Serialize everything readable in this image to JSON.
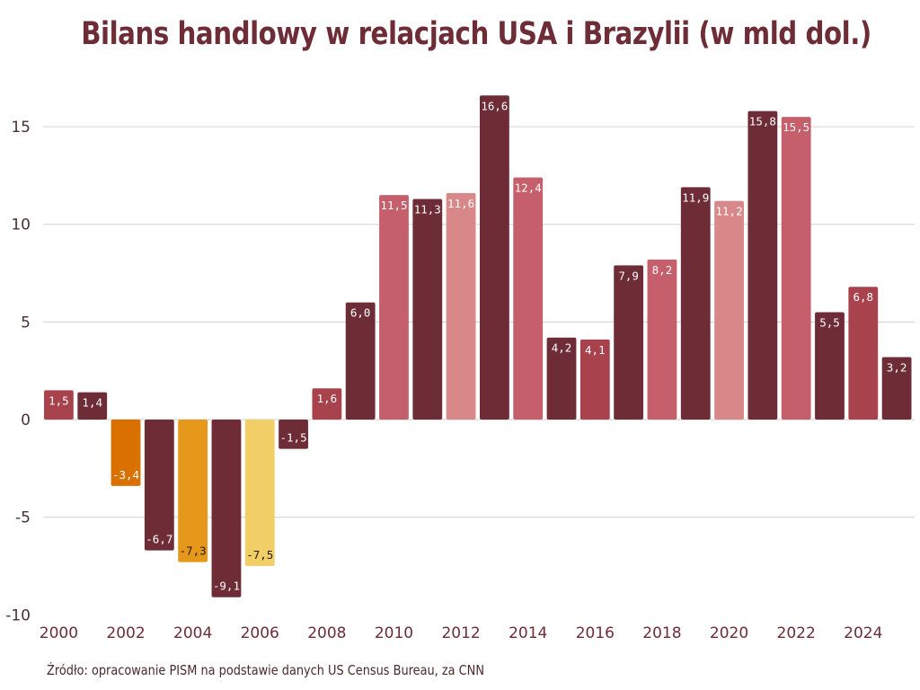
{
  "chart_data": {
    "type": "bar",
    "title": "Bilans handlowy w relacjach USA i Brazylii (w mld dol.)",
    "xlabel": "",
    "ylabel": "",
    "ylim": [
      -10,
      17
    ],
    "yticks": [
      15,
      10,
      5,
      0,
      -5,
      -10
    ],
    "ytick_labels": [
      "15",
      "10",
      "5",
      "0",
      "-5",
      "-10"
    ],
    "grid": true,
    "legend": "none",
    "categories": [
      "2000",
      "2001",
      "2002",
      "2003",
      "2004",
      "2005",
      "2006",
      "2007",
      "2008",
      "2009",
      "2010",
      "2011",
      "2012",
      "2013",
      "2014",
      "2015",
      "2016",
      "2017",
      "2018",
      "2019",
      "2020",
      "2021",
      "2022",
      "2023",
      "2024",
      "2025"
    ],
    "xtick_labels": [
      "2000",
      "2002",
      "2004",
      "2006",
      "2008",
      "2010",
      "2012",
      "2014",
      "2016",
      "2018",
      "2020",
      "2022",
      "2024"
    ],
    "values": [
      1.5,
      1.4,
      -3.4,
      -6.7,
      -7.3,
      -9.1,
      -7.5,
      -1.5,
      1.6,
      6.0,
      11.5,
      11.3,
      11.6,
      16.6,
      12.4,
      4.2,
      4.1,
      7.9,
      8.2,
      11.9,
      11.2,
      15.8,
      15.5,
      5.5,
      6.8,
      3.2
    ],
    "data_labels": [
      "1,5",
      "1,4",
      "-3,4",
      "-6,7",
      "-7,3",
      "-9,1",
      "-7,5",
      "-1,5",
      "1,6",
      "6,0",
      "11,5",
      "11,3",
      "11,6",
      "16,6",
      "12,4",
      "4,2",
      "4,1",
      "7,9",
      "8,2",
      "11,9",
      "11,2",
      "15,8",
      "15,5",
      "5,5",
      "6,8",
      "3,2"
    ],
    "bar_colors": [
      "#a8434e",
      "#6e2c37",
      "#d97000",
      "#6e2c37",
      "#e6981a",
      "#6e2c37",
      "#f2cf66",
      "#6e2c37",
      "#a8434e",
      "#6e2c37",
      "#c45f6b",
      "#6e2c37",
      "#d88888",
      "#6e2c37",
      "#c45f6b",
      "#6e2c37",
      "#a8434e",
      "#6e2c37",
      "#c45f6b",
      "#6e2c37",
      "#d88888",
      "#6e2c37",
      "#c45f6b",
      "#6e2c37",
      "#a8434e",
      "#6e2c37"
    ],
    "label_colors": [
      "#ffffff",
      "#ffffff",
      "#ffffff",
      "#ffffff",
      "#2a1a10",
      "#ffffff",
      "#2a1a10",
      "#ffffff",
      "#ffffff",
      "#ffffff",
      "#ffffff",
      "#ffffff",
      "#ffffff",
      "#ffffff",
      "#ffffff",
      "#ffffff",
      "#ffffff",
      "#ffffff",
      "#ffffff",
      "#ffffff",
      "#ffffff",
      "#ffffff",
      "#ffffff",
      "#ffffff",
      "#ffffff",
      "#ffffff"
    ]
  },
  "source": "Źródło: opracowanie PISM na podstawie danych US Census Bureau, za CNN",
  "colors": {
    "title": "#6e2c37",
    "grid": "#dcd6d8",
    "axis_text": "#4a3035"
  }
}
